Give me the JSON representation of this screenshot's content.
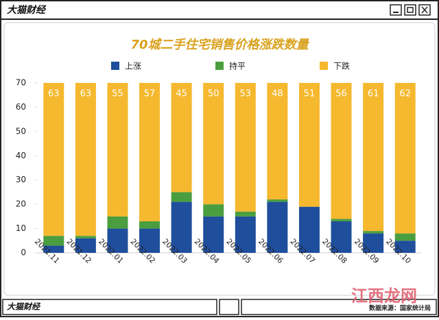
{
  "window": {
    "title": "大猫财经",
    "footer": "大猫财经",
    "source": "数据来源：国家统计局",
    "watermark": "江西龙网"
  },
  "chart_data": {
    "type": "bar",
    "stacked": true,
    "title": "70城二手住宅销售价格涨跌数量",
    "categories": [
      "2021.11",
      "2021.12",
      "2022.01",
      "2022.02",
      "2022.03",
      "2022.04",
      "2022.05",
      "2022.06",
      "2022.07",
      "2022.08",
      "2022.09",
      "2022.10"
    ],
    "series": [
      {
        "name": "上涨",
        "color": "#1f4e9c",
        "values": [
          3,
          6,
          10,
          10,
          21,
          15,
          15,
          21,
          19,
          13,
          8,
          5
        ]
      },
      {
        "name": "持平",
        "color": "#4a9e3f",
        "values": [
          4,
          1,
          5,
          3,
          4,
          5,
          2,
          1,
          0,
          1,
          1,
          3
        ]
      },
      {
        "name": "下跌",
        "color": "#f5b82e",
        "values": [
          63,
          63,
          55,
          57,
          45,
          50,
          53,
          48,
          51,
          56,
          61,
          62
        ]
      }
    ],
    "data_labels_series": 2,
    "ylim": [
      0,
      70
    ],
    "yticks": [
      0,
      10,
      20,
      30,
      40,
      50,
      60,
      70
    ],
    "grid": false,
    "legend": "top"
  }
}
